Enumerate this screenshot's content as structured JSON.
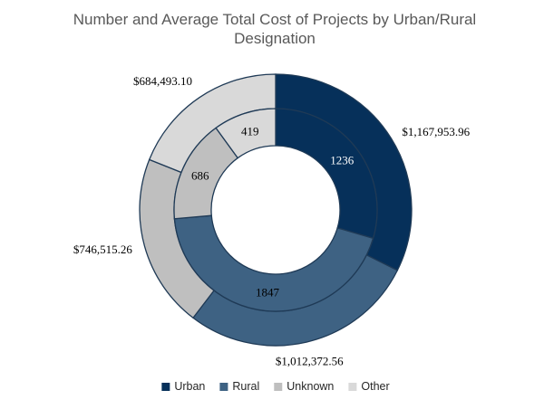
{
  "chart_data": {
    "type": "pie",
    "variant": "double-ring doughnut",
    "title_lines": [
      "Number and Average Total Cost of Projects by Urban/Rural",
      "Designation"
    ],
    "categories": [
      "Urban",
      "Rural",
      "Unknown",
      "Other"
    ],
    "colors": [
      "#06305a",
      "#3e6283",
      "#bfbfbf",
      "#d9d9d9"
    ],
    "series": [
      {
        "ring": "inner",
        "values": [
          1236,
          1847,
          686,
          419
        ],
        "labels": [
          "1236",
          "1847",
          "686",
          "419"
        ]
      },
      {
        "ring": "outer",
        "values": [
          1167953.96,
          1012372.56,
          746515.26,
          684493.1
        ],
        "labels": [
          "$1,167,953.96",
          "$1,012,372.56",
          "$746,515.26",
          "$684,493.10"
        ]
      }
    ],
    "legend_position": "bottom",
    "legend": [
      "Urban",
      "Rural",
      "Unknown",
      "Other"
    ]
  }
}
